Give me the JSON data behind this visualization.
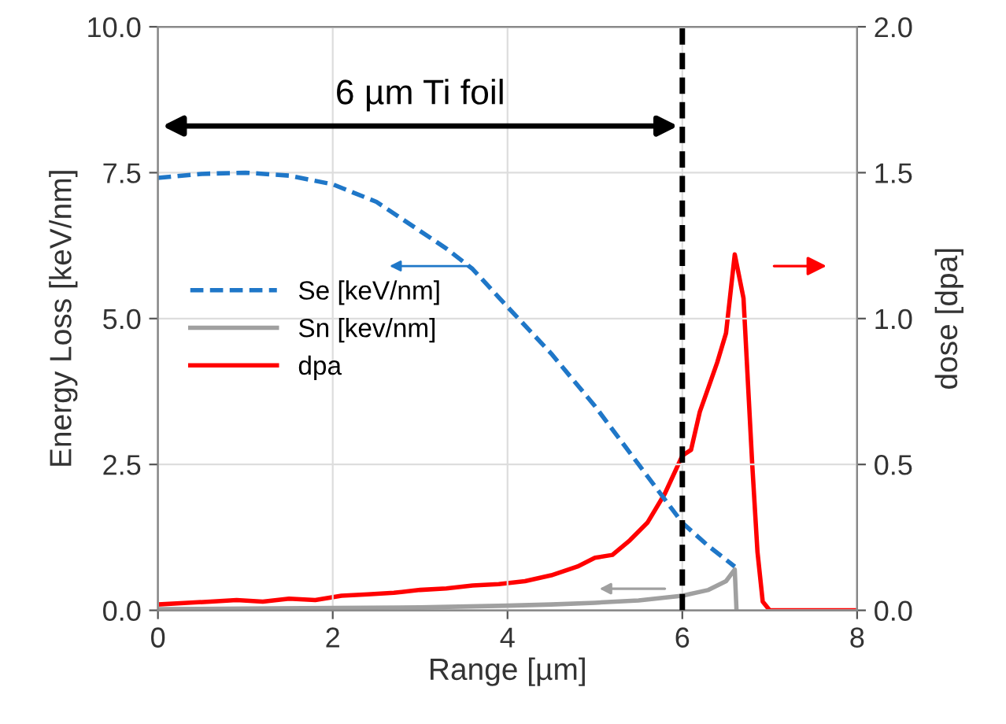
{
  "chart_data": {
    "type": "line",
    "xlabel": "Range [µm]",
    "ylabel": "Energy Loss [keV/nm]",
    "y2label": "dose [dpa]",
    "xlim": [
      0,
      8
    ],
    "xticks": [
      0,
      2,
      4,
      6,
      8
    ],
    "ylim": [
      0,
      10
    ],
    "yticks": [
      {
        "value": 0,
        "label": "0.0"
      },
      {
        "value": 2.5,
        "label": "2.5"
      },
      {
        "value": 5,
        "label": "5.0"
      },
      {
        "value": 7.5,
        "label": "7.5"
      },
      {
        "value": 10,
        "label": "10.0"
      }
    ],
    "y2lim": [
      0,
      2
    ],
    "y2ticks": [
      {
        "value": 0,
        "label": "0.0"
      },
      {
        "value": 0.5,
        "label": "0.5"
      },
      {
        "value": 1,
        "label": "1.0"
      },
      {
        "value": 1.5,
        "label": "1.5"
      },
      {
        "value": 2,
        "label": "2.0"
      }
    ],
    "grid": true,
    "legend": "left",
    "ref_lines": [
      {
        "axis": "x",
        "value": 6,
        "color": "#000000",
        "line_style": "dashed"
      }
    ],
    "annotations": [
      "6 µm Ti foil"
    ],
    "series": [
      {
        "name": "Se [keV/nm]",
        "color": "#1f77c8",
        "line_style": "dashed",
        "x": [
          0,
          0.5,
          1,
          1.5,
          2,
          2.5,
          3,
          3.3,
          3.6,
          4,
          4.5,
          5,
          5.5,
          6,
          6.3,
          6.6
        ],
        "values": [
          7.41,
          7.48,
          7.5,
          7.45,
          7.3,
          7.0,
          6.5,
          6.2,
          5.85,
          5.2,
          4.4,
          3.5,
          2.5,
          1.5,
          1.1,
          0.75
        ]
      },
      {
        "name": "Sn [kev/nm]",
        "color": "#a0a0a0",
        "line_style": "solid",
        "x": [
          0,
          1,
          2,
          3,
          4,
          4.5,
          5,
          5.5,
          6,
          6.3,
          6.5,
          6.6,
          6.62
        ],
        "values": [
          0.02,
          0.03,
          0.04,
          0.05,
          0.08,
          0.1,
          0.13,
          0.17,
          0.25,
          0.35,
          0.5,
          0.7,
          0
        ]
      },
      {
        "name": "dpa",
        "color": "#ff0000",
        "line_style": "solid",
        "axis": "y2",
        "x": [
          0,
          0.3,
          0.6,
          0.9,
          1.2,
          1.5,
          1.8,
          2.1,
          2.4,
          2.7,
          3,
          3.3,
          3.6,
          3.9,
          4.2,
          4.5,
          4.8,
          5,
          5.2,
          5.4,
          5.6,
          5.8,
          6,
          6.1,
          6.2,
          6.4,
          6.5,
          6.6,
          6.7,
          6.8,
          6.86,
          6.92,
          7,
          7.5,
          8
        ],
        "values": [
          0.02,
          0.025,
          0.03,
          0.035,
          0.03,
          0.04,
          0.035,
          0.05,
          0.055,
          0.06,
          0.07,
          0.075,
          0.085,
          0.09,
          0.1,
          0.12,
          0.15,
          0.18,
          0.19,
          0.24,
          0.3,
          0.4,
          0.53,
          0.55,
          0.68,
          0.85,
          0.95,
          1.22,
          1.07,
          0.5,
          0.2,
          0.03,
          0,
          0,
          0
        ]
      }
    ]
  }
}
